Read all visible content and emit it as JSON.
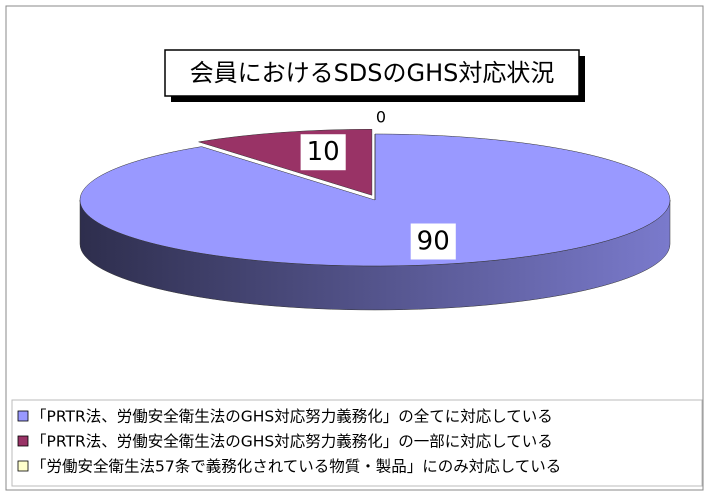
{
  "chart_data": {
    "type": "pie",
    "title": "会員におけるSDSのGHS対応状況",
    "categories": [
      "「PRTR法、労働安全衛生法のGHS対応努力義務化」の全てに対応している",
      "「PRTR法、労働安全衛生法のGHS対応努力義務化」の一部に対応している",
      "「労働安全衛生法57条で義務化されている物質・製品」にのみ対応している"
    ],
    "values": [
      90,
      10,
      0
    ],
    "colors": [
      "#9999ff",
      "#993366",
      "#ffffcc"
    ],
    "legend": "bottom-left"
  }
}
